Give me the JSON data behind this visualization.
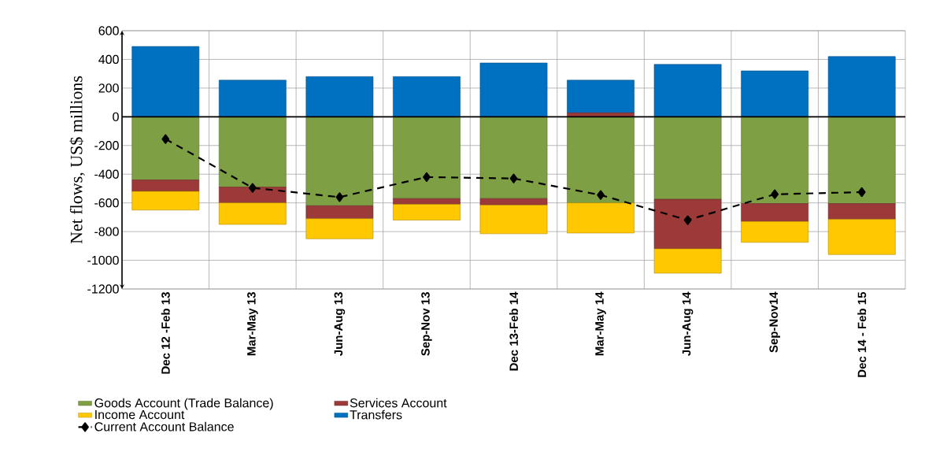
{
  "chart_data": {
    "type": "bar",
    "stacked": true,
    "ylabel": "Net flows, US$ millions",
    "categories": [
      "Dec 12 -Feb 13",
      "Mar-May 13",
      "Jun-Aug 13",
      "Sep-Nov 13",
      "Dec 13-Feb 14",
      "Mar-May 14",
      "Jun-Aug 14",
      "Sep-Nov14",
      "Dec 14 - Feb 15"
    ],
    "series": [
      {
        "name": "Goods Account (Trade Balance)",
        "color": "#7f9f45",
        "values": [
          -440,
          -490,
          -620,
          -570,
          -570,
          -600,
          -575,
          -605,
          -605
        ]
      },
      {
        "name": "Services Account",
        "color": "#9b3a38",
        "values": [
          -80,
          -110,
          -90,
          -40,
          -45,
          30,
          -345,
          -125,
          -110
        ]
      },
      {
        "name": "Income Account",
        "color": "#ffc800",
        "values": [
          -130,
          -150,
          -140,
          -110,
          -200,
          -210,
          -170,
          -145,
          -245
        ]
      },
      {
        "name": "Transfers",
        "color": "#0070c0",
        "values": [
          490,
          255,
          280,
          280,
          375,
          225,
          365,
          320,
          420
        ]
      },
      {
        "name": "Current Account Balance",
        "type": "line",
        "color": "#000000",
        "values": [
          -155,
          -495,
          -560,
          -420,
          -430,
          -545,
          -720,
          -540,
          -525
        ]
      }
    ],
    "ylim": [
      -1200,
      600
    ],
    "yticks": [
      -1200,
      -1000,
      -800,
      -600,
      -400,
      -200,
      0,
      200,
      400,
      600
    ],
    "grid": true,
    "legend": "bottom left",
    "marker": "diamond",
    "line_style": "dashed"
  }
}
